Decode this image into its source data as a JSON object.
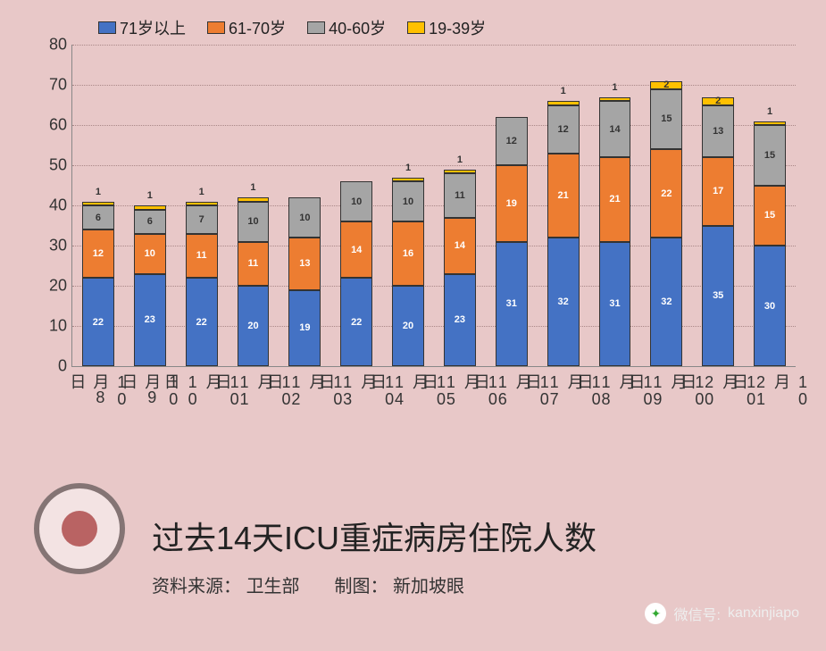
{
  "chart": {
    "type": "stacked-bar",
    "background_color": "#e8c8c8",
    "grid_color": "#a88888",
    "axis_color": "#888888",
    "ylim": [
      0,
      80
    ],
    "ytick_step": 10,
    "bar_width_ratio": 0.62,
    "tick_fontsize": 18,
    "seg_label_fontsize": 11,
    "border_color": "#333333",
    "categories": [
      "10月8日",
      "10月9日",
      "10月10日",
      "10月11日",
      "10月12日",
      "10月13日",
      "10月14日",
      "10月15日",
      "10月16日",
      "10月17日",
      "10月18日",
      "10月19日",
      "10月20日",
      "10月21日"
    ],
    "series": [
      {
        "name": "71岁以上",
        "color": "#4472c4",
        "label_color": "#ffffff"
      },
      {
        "name": "61-70岁",
        "color": "#ed7d31",
        "label_color": "#ffffff"
      },
      {
        "name": "40-60岁",
        "color": "#a5a5a5",
        "label_color": "#333333"
      },
      {
        "name": "19-39岁",
        "color": "#ffc000",
        "label_color": "#333333"
      }
    ],
    "data": [
      [
        22,
        12,
        6,
        1
      ],
      [
        23,
        10,
        6,
        1
      ],
      [
        22,
        11,
        7,
        1
      ],
      [
        20,
        11,
        10,
        1
      ],
      [
        19,
        13,
        10,
        0
      ],
      [
        22,
        14,
        10,
        0
      ],
      [
        20,
        16,
        10,
        1
      ],
      [
        23,
        14,
        11,
        1
      ],
      [
        31,
        19,
        12,
        0
      ],
      [
        32,
        21,
        12,
        1
      ],
      [
        31,
        21,
        14,
        1
      ],
      [
        32,
        22,
        15,
        2
      ],
      [
        35,
        17,
        13,
        2
      ],
      [
        30,
        15,
        15,
        1
      ]
    ]
  },
  "legend_items": [
    "71岁以上",
    "61-70岁",
    "40-60岁",
    "19-39岁"
  ],
  "title": "过去14天ICU重症病房住院人数",
  "source_label": "资料来源：",
  "source_value": "卫生部",
  "credit_label": "制图：",
  "credit_value": "新加坡眼",
  "footer": {
    "label": "微信号:",
    "value": "kanxinjiapo"
  }
}
